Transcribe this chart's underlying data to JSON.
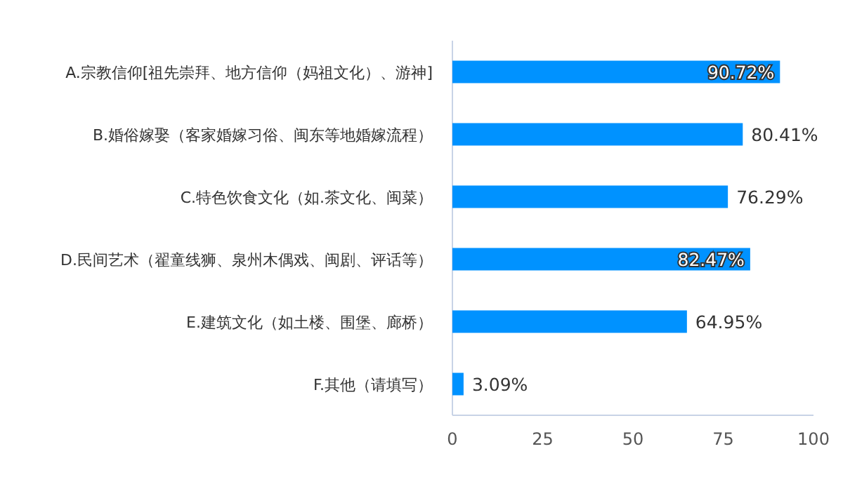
{
  "chart_data": {
    "type": "bar",
    "orientation": "horizontal",
    "categories": [
      "A.宗教信仰[祖先崇拜、地方信仰（妈祖文化）、游神]",
      "B.婚俗嫁娶（客家婚嫁习俗、闽东等地婚嫁流程）",
      "C.特色饮食文化（如.茶文化、闽菜）",
      "D.民间艺术（翟童线狮、泉州木偶戏、闽剧、评话等）",
      "E.建筑文化（如土楼、围堡、廊桥）",
      "F.其他（请填写）"
    ],
    "values": [
      90.72,
      80.41,
      76.29,
      82.47,
      64.95,
      3.09
    ],
    "value_labels": [
      "90.72%",
      "80.41%",
      "76.29%",
      "82.47%",
      "64.95%",
      "3.09%"
    ],
    "color": "#0092ff",
    "xlim": [
      0,
      100
    ],
    "xticks": [
      0,
      25,
      50,
      75,
      100
    ]
  }
}
